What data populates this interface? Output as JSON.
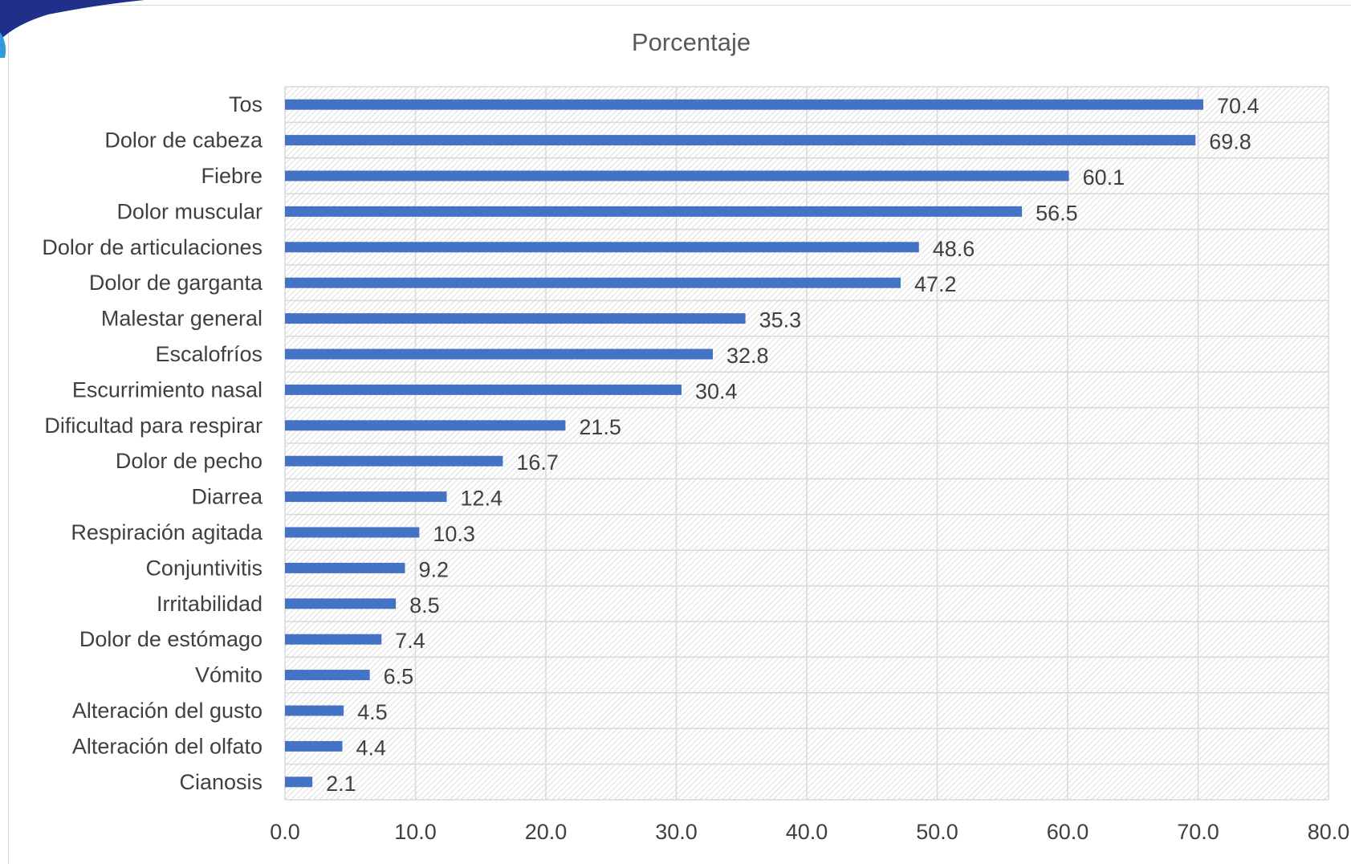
{
  "chart_data": {
    "type": "bar",
    "orientation": "horizontal",
    "title": "Porcentaje",
    "categories": [
      "Tos",
      "Dolor de cabeza",
      "Fiebre",
      "Dolor muscular",
      "Dolor de articulaciones",
      "Dolor de garganta",
      "Malestar general",
      "Escalofríos",
      "Escurrimiento nasal",
      "Dificultad para respirar",
      "Dolor de pecho",
      "Diarrea",
      "Respiración agitada",
      "Conjuntivitis",
      "Irritabilidad",
      "Dolor de estómago",
      "Vómito",
      "Alteración del gusto",
      "Alteración del olfato",
      "Cianosis"
    ],
    "values": [
      70.4,
      69.8,
      60.1,
      56.5,
      48.6,
      47.2,
      35.3,
      32.8,
      30.4,
      21.5,
      16.7,
      12.4,
      10.3,
      9.2,
      8.5,
      7.4,
      6.5,
      4.5,
      4.4,
      2.1
    ],
    "data_labels": [
      "70.4",
      "69.8",
      "60.1",
      "56.5",
      "48.6",
      "47.2",
      "35.3",
      "32.8",
      "30.4",
      "21.5",
      "16.7",
      "12.4",
      "10.3",
      "9.2",
      "8.5",
      "7.4",
      "6.5",
      "4.5",
      "4.4",
      "2.1"
    ],
    "xlim": [
      0,
      80
    ],
    "xticks": [
      0,
      10,
      20,
      30,
      40,
      50,
      60,
      70,
      80
    ],
    "xtick_labels": [
      "0.0",
      "10.0",
      "20.0",
      "30.0",
      "40.0",
      "50.0",
      "60.0",
      "70.0",
      "80.0"
    ],
    "grid": true,
    "legend": "none",
    "colors": {
      "bar": "#4472c4",
      "text": "#404040",
      "title": "#595959",
      "grid": "#d9d9d9",
      "hatch": "#d0d0d0"
    }
  }
}
